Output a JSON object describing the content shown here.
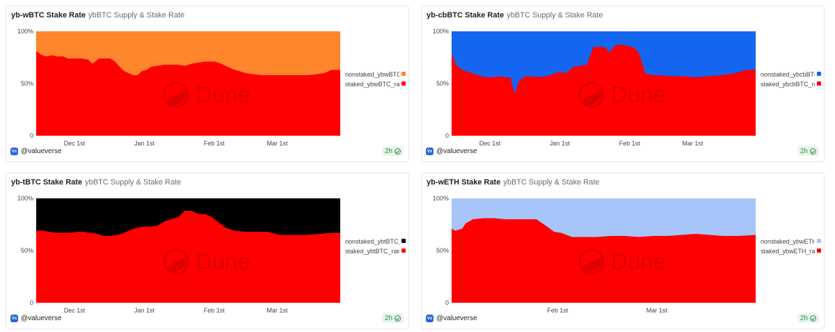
{
  "panels": [
    {
      "title": "yb-wBTC Stake Rate",
      "subtitle": "ybBTC Supply & Stake Rate",
      "user": "@valueverse",
      "avatar_text": "Vx",
      "age": "2h",
      "watermark": "Dune",
      "colors": {
        "top": "#ff862c",
        "bottom": "#ff0000"
      },
      "legend": [
        {
          "label": "nonstaked_ybwBTC_rate",
          "color": "#ff862c"
        },
        {
          "label": "staked_ybwBTC_rate",
          "color": "#ff0000"
        }
      ]
    },
    {
      "title": "yb-cbBTC Stake Rate",
      "subtitle": "ybBTC Supply & Stake Rate",
      "user": "@valueverse",
      "avatar_text": "Vx",
      "age": "2h",
      "watermark": "Dune",
      "colors": {
        "top": "#1466f0",
        "bottom": "#ff0000"
      },
      "legend": [
        {
          "label": "nonstaked_ybcbBTC_rate",
          "color": "#1466f0"
        },
        {
          "label": "staked_ybcbBTC_rate",
          "color": "#ff0000"
        }
      ]
    },
    {
      "title": "yb-tBTC Stake Rate",
      "subtitle": "ybBTC Supply & Stake Rate",
      "user": "@valueverse",
      "avatar_text": "Vx",
      "age": "2h",
      "watermark": "Dune",
      "colors": {
        "top": "#000000",
        "bottom": "#ff0000"
      },
      "legend": [
        {
          "label": "nonstaked_ybtBTC_rate",
          "color": "#000000"
        },
        {
          "label": "staked_ybtBTC_rate",
          "color": "#ff0000"
        }
      ]
    },
    {
      "title": "yb-wETH Stake Rate",
      "subtitle": "ybBTC Supply & Stake Rate",
      "user": "@valueverse",
      "avatar_text": "Vx",
      "age": "2h",
      "watermark": "Dune",
      "colors": {
        "top": "#a8c5fa",
        "bottom": "#ff0000"
      },
      "legend": [
        {
          "label": "nonstaked_ybwETH_rate",
          "color": "#a8c5fa"
        },
        {
          "label": "staked_ybwETH_rate",
          "color": "#ff0000"
        }
      ]
    }
  ],
  "chart_data": [
    {
      "type": "area",
      "stacked": true,
      "normalized": true,
      "ylim": [
        0,
        100
      ],
      "yticks": [
        "0",
        "50%",
        "100%"
      ],
      "xlim": [
        "2024-11-14",
        "2025-03-29"
      ],
      "xticks": [
        {
          "date": "2024-12-01",
          "label": "Dec 1st"
        },
        {
          "date": "2025-01-01",
          "label": "Jan 1st"
        },
        {
          "date": "2025-02-01",
          "label": "Feb 1st"
        },
        {
          "date": "2025-03-01",
          "label": "Mar 1st"
        }
      ],
      "series": [
        {
          "name": "nonstaked_ybwBTC_rate",
          "color": "#ff862c"
        },
        {
          "name": "staked_ybwBTC_rate",
          "color": "#ff0000",
          "x": [
            "2024-11-14",
            "2024-11-16",
            "2024-11-18",
            "2024-11-21",
            "2024-11-23",
            "2024-11-26",
            "2024-11-28",
            "2024-12-04",
            "2024-12-07",
            "2024-12-09",
            "2024-12-12",
            "2024-12-14",
            "2024-12-17",
            "2024-12-19",
            "2024-12-21",
            "2024-12-23",
            "2024-12-25",
            "2024-12-27",
            "2024-12-29",
            "2024-12-31",
            "2025-01-02",
            "2025-01-04",
            "2025-01-07",
            "2025-01-10",
            "2025-01-13",
            "2025-01-16",
            "2025-01-19",
            "2025-01-22",
            "2025-01-25",
            "2025-01-28",
            "2025-02-01",
            "2025-02-03",
            "2025-02-06",
            "2025-02-09",
            "2025-02-12",
            "2025-02-15",
            "2025-02-18",
            "2025-02-22",
            "2025-02-28",
            "2025-03-05",
            "2025-03-10",
            "2025-03-15",
            "2025-03-19",
            "2025-03-22",
            "2025-03-25",
            "2025-03-29"
          ],
          "y": [
            81,
            78,
            76,
            77,
            76,
            76,
            74,
            74,
            73,
            69,
            74,
            74,
            74,
            71,
            66,
            62,
            60,
            58,
            58,
            62,
            63,
            66,
            67,
            68,
            68,
            68,
            67,
            69,
            70,
            71,
            71,
            70,
            67,
            64,
            62,
            60,
            59,
            58,
            58,
            58,
            58,
            58,
            59,
            60,
            63,
            63
          ]
        }
      ]
    },
    {
      "type": "area",
      "stacked": true,
      "normalized": true,
      "ylim": [
        0,
        100
      ],
      "yticks": [
        "0",
        "50%",
        "100%"
      ],
      "xlim": [
        "2024-11-14",
        "2025-03-29"
      ],
      "xticks": [
        {
          "date": "2024-12-01",
          "label": "Dec 1st"
        },
        {
          "date": "2025-01-01",
          "label": "Jan 1st"
        },
        {
          "date": "2025-02-01",
          "label": "Feb 1st"
        },
        {
          "date": "2025-03-01",
          "label": "Mar 1st"
        }
      ],
      "series": [
        {
          "name": "nonstaked_ybcbBTC_rate",
          "color": "#1466f0"
        },
        {
          "name": "staked_ybcbBTC_rate",
          "color": "#ff0000",
          "x": [
            "2024-11-14",
            "2024-11-16",
            "2024-11-18",
            "2024-11-20",
            "2024-11-23",
            "2024-11-26",
            "2024-11-29",
            "2024-12-02",
            "2024-12-05",
            "2024-12-08",
            "2024-12-10",
            "2024-12-12",
            "2024-12-14",
            "2024-12-17",
            "2024-12-20",
            "2024-12-23",
            "2024-12-26",
            "2024-12-29",
            "2025-01-01",
            "2025-01-04",
            "2025-01-07",
            "2025-01-10",
            "2025-01-13",
            "2025-01-16",
            "2025-01-19",
            "2025-01-21",
            "2025-01-23",
            "2025-01-26",
            "2025-01-29",
            "2025-02-01",
            "2025-02-03",
            "2025-02-05",
            "2025-02-08",
            "2025-02-11",
            "2025-02-15",
            "2025-02-20",
            "2025-02-25",
            "2025-03-02",
            "2025-03-08",
            "2025-03-14",
            "2025-03-20",
            "2025-03-25",
            "2025-03-29"
          ],
          "y": [
            79,
            68,
            64,
            62,
            60,
            58,
            56,
            56,
            57,
            56,
            56,
            40,
            53,
            57,
            57,
            56,
            57,
            59,
            61,
            60,
            66,
            67,
            68,
            85,
            85,
            85,
            80,
            87,
            87,
            86,
            84,
            80,
            60,
            58,
            58,
            57,
            57,
            56,
            57,
            58,
            60,
            63,
            63
          ]
        }
      ]
    },
    {
      "type": "area",
      "stacked": true,
      "normalized": true,
      "ylim": [
        0,
        100
      ],
      "yticks": [
        "0",
        "50%",
        "100%"
      ],
      "xlim": [
        "2024-11-14",
        "2025-03-29"
      ],
      "xticks": [
        {
          "date": "2024-12-01",
          "label": "Dec 1st"
        },
        {
          "date": "2025-01-01",
          "label": "Jan 1st"
        },
        {
          "date": "2025-02-01",
          "label": "Feb 1st"
        },
        {
          "date": "2025-03-01",
          "label": "Mar 1st"
        }
      ],
      "series": [
        {
          "name": "nonstaked_ybtBTC_rate",
          "color": "#000000"
        },
        {
          "name": "staked_ybtBTC_rate",
          "color": "#ff0000",
          "x": [
            "2024-11-14",
            "2024-11-17",
            "2024-11-20",
            "2024-11-23",
            "2024-11-26",
            "2024-11-29",
            "2024-12-02",
            "2024-12-05",
            "2024-12-08",
            "2024-12-11",
            "2024-12-14",
            "2024-12-17",
            "2024-12-20",
            "2024-12-23",
            "2024-12-26",
            "2024-12-29",
            "2025-01-01",
            "2025-01-04",
            "2025-01-07",
            "2025-01-10",
            "2025-01-13",
            "2025-01-16",
            "2025-01-19",
            "2025-01-22",
            "2025-01-25",
            "2025-01-28",
            "2025-01-31",
            "2025-02-03",
            "2025-02-06",
            "2025-02-10",
            "2025-02-15",
            "2025-02-20",
            "2025-02-25",
            "2025-03-02",
            "2025-03-08",
            "2025-03-14",
            "2025-03-20",
            "2025-03-25",
            "2025-03-29"
          ],
          "y": [
            69,
            69,
            68,
            67,
            67,
            67,
            68,
            68,
            67,
            66,
            64,
            64,
            65,
            67,
            70,
            72,
            73,
            73,
            74,
            78,
            80,
            82,
            88,
            88,
            85,
            85,
            82,
            77,
            72,
            69,
            68,
            68,
            68,
            65,
            65,
            65,
            66,
            67,
            67
          ]
        }
      ]
    },
    {
      "type": "area",
      "stacked": true,
      "normalized": true,
      "ylim": [
        0,
        100
      ],
      "yticks": [
        "0",
        "50%",
        "100%"
      ],
      "xlim": [
        "2025-01-02",
        "2025-03-29"
      ],
      "xticks": [
        {
          "date": "2025-02-01",
          "label": "Feb 1st"
        },
        {
          "date": "2025-03-01",
          "label": "Mar 1st"
        }
      ],
      "series": [
        {
          "name": "nonstaked_ybwETH_rate",
          "color": "#a8c5fa"
        },
        {
          "name": "staked_ybwETH_rate",
          "color": "#ff0000",
          "x": [
            "2025-01-02",
            "2025-01-03",
            "2025-01-05",
            "2025-01-06",
            "2025-01-08",
            "2025-01-11",
            "2025-01-14",
            "2025-01-17",
            "2025-01-20",
            "2025-01-23",
            "2025-01-26",
            "2025-01-29",
            "2025-01-31",
            "2025-02-02",
            "2025-02-05",
            "2025-02-08",
            "2025-02-12",
            "2025-02-16",
            "2025-02-20",
            "2025-02-24",
            "2025-02-28",
            "2025-03-04",
            "2025-03-08",
            "2025-03-12",
            "2025-03-16",
            "2025-03-20",
            "2025-03-24",
            "2025-03-29"
          ],
          "y": [
            71,
            69,
            71,
            76,
            80,
            81,
            81,
            80,
            80,
            80,
            80,
            73,
            68,
            67,
            63,
            63,
            63,
            64,
            64,
            63,
            64,
            64,
            65,
            66,
            65,
            64,
            64,
            65
          ]
        }
      ]
    }
  ]
}
